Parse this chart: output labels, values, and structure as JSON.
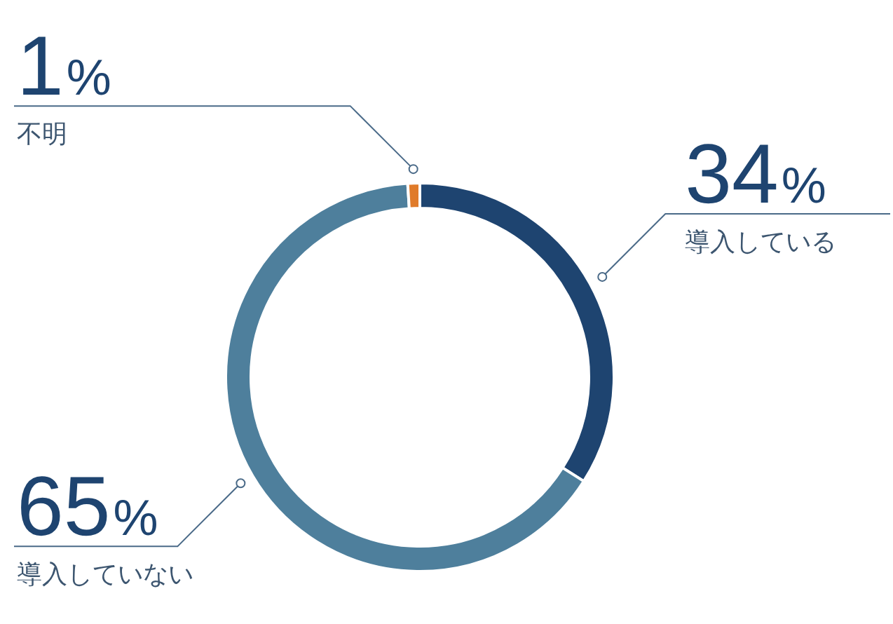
{
  "chart_data": {
    "type": "donut",
    "categories": [
      "導入している",
      "導入していない",
      "不明"
    ],
    "values": [
      34,
      65,
      1
    ],
    "colors": [
      "#1e4470",
      "#4e7f9c",
      "#e07b2a"
    ],
    "value_labels": [
      "34%",
      "65%",
      "1%"
    ]
  }
}
